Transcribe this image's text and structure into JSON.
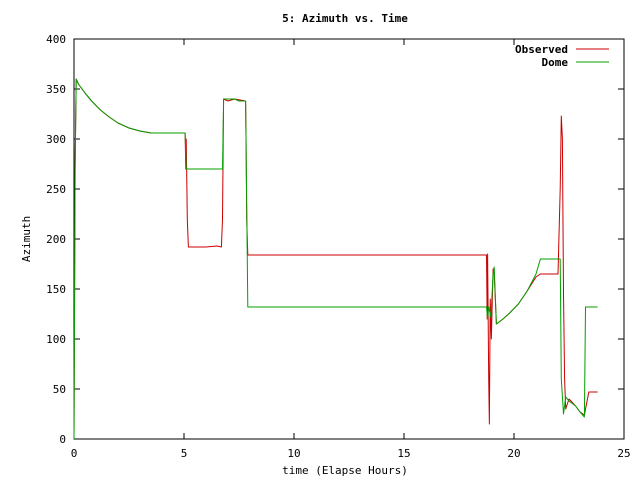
{
  "chart_data": {
    "type": "line",
    "title": "5: Azimuth vs. Time",
    "xlabel": "time (Elapse Hours)",
    "ylabel": "Azimuth",
    "xlim": [
      0,
      25
    ],
    "ylim": [
      0,
      400
    ],
    "xticks": [
      0,
      5,
      10,
      15,
      20,
      25
    ],
    "yticks": [
      0,
      50,
      100,
      150,
      200,
      250,
      300,
      350,
      400
    ],
    "grid": false,
    "legend": "top-right",
    "series": [
      {
        "name": "Observed",
        "color": "#cc0000",
        "points": [
          [
            0,
            0
          ],
          [
            0.05,
            270
          ],
          [
            0.1,
            360
          ],
          [
            0.2,
            355
          ],
          [
            0.5,
            346
          ],
          [
            0.8,
            338
          ],
          [
            1.2,
            329
          ],
          [
            1.6,
            322
          ],
          [
            2.0,
            316
          ],
          [
            2.5,
            311
          ],
          [
            3.0,
            308
          ],
          [
            3.5,
            306
          ],
          [
            4.0,
            306
          ],
          [
            4.5,
            306
          ],
          [
            5.05,
            306
          ],
          [
            5.08,
            270
          ],
          [
            5.1,
            300
          ],
          [
            5.12,
            270
          ],
          [
            5.15,
            220
          ],
          [
            5.2,
            192
          ],
          [
            5.5,
            192
          ],
          [
            6.0,
            192
          ],
          [
            6.5,
            193
          ],
          [
            6.7,
            192
          ],
          [
            6.75,
            220
          ],
          [
            6.8,
            340
          ],
          [
            7.0,
            338
          ],
          [
            7.3,
            340
          ],
          [
            7.8,
            338
          ],
          [
            7.82,
            300
          ],
          [
            7.85,
            220
          ],
          [
            7.9,
            184
          ],
          [
            10,
            184
          ],
          [
            15,
            184
          ],
          [
            18.75,
            184
          ],
          [
            18.78,
            120
          ],
          [
            18.8,
            185
          ],
          [
            18.85,
            60
          ],
          [
            18.88,
            15
          ],
          [
            18.92,
            140
          ],
          [
            18.97,
            100
          ],
          [
            19.05,
            170
          ],
          [
            19.1,
            165
          ],
          [
            19.2,
            115
          ],
          [
            19.5,
            120
          ],
          [
            19.8,
            126
          ],
          [
            20.2,
            135
          ],
          [
            20.6,
            148
          ],
          [
            21.0,
            162
          ],
          [
            21.2,
            165
          ],
          [
            21.5,
            165
          ],
          [
            22.0,
            165
          ],
          [
            22.1,
            250
          ],
          [
            22.15,
            323
          ],
          [
            22.2,
            300
          ],
          [
            22.25,
            145
          ],
          [
            22.3,
            60
          ],
          [
            22.35,
            30
          ],
          [
            22.5,
            40
          ],
          [
            22.8,
            33
          ],
          [
            23.0,
            27
          ],
          [
            23.2,
            24
          ],
          [
            23.4,
            47
          ],
          [
            23.7,
            47
          ],
          [
            23.8,
            47
          ]
        ]
      },
      {
        "name": "Dome",
        "color": "#00a000",
        "points": [
          [
            0,
            0
          ],
          [
            0.05,
            270
          ],
          [
            0.1,
            360
          ],
          [
            0.2,
            355
          ],
          [
            0.5,
            346
          ],
          [
            0.8,
            338
          ],
          [
            1.2,
            329
          ],
          [
            1.6,
            322
          ],
          [
            2.0,
            316
          ],
          [
            2.5,
            311
          ],
          [
            3.0,
            308
          ],
          [
            3.5,
            306
          ],
          [
            4.0,
            306
          ],
          [
            4.5,
            306
          ],
          [
            5.05,
            306
          ],
          [
            5.1,
            270
          ],
          [
            5.5,
            270
          ],
          [
            6.0,
            270
          ],
          [
            6.5,
            270
          ],
          [
            6.75,
            270
          ],
          [
            6.8,
            340
          ],
          [
            7.0,
            340
          ],
          [
            7.3,
            340
          ],
          [
            7.5,
            338
          ],
          [
            7.8,
            338
          ],
          [
            7.9,
            132
          ],
          [
            10,
            132
          ],
          [
            15,
            132
          ],
          [
            18.75,
            132
          ],
          [
            18.8,
            120
          ],
          [
            18.85,
            132
          ],
          [
            18.95,
            122
          ],
          [
            19.05,
            165
          ],
          [
            19.1,
            172
          ],
          [
            19.2,
            115
          ],
          [
            19.5,
            120
          ],
          [
            19.8,
            126
          ],
          [
            20.2,
            135
          ],
          [
            20.6,
            148
          ],
          [
            21.0,
            165
          ],
          [
            21.2,
            180
          ],
          [
            21.5,
            180
          ],
          [
            22.0,
            180
          ],
          [
            22.1,
            180
          ],
          [
            22.15,
            60
          ],
          [
            22.25,
            25
          ],
          [
            22.35,
            42
          ],
          [
            22.5,
            38
          ],
          [
            22.8,
            33
          ],
          [
            23.0,
            27
          ],
          [
            23.2,
            22
          ],
          [
            23.25,
            132
          ],
          [
            23.5,
            132
          ],
          [
            23.8,
            132
          ]
        ]
      }
    ]
  }
}
